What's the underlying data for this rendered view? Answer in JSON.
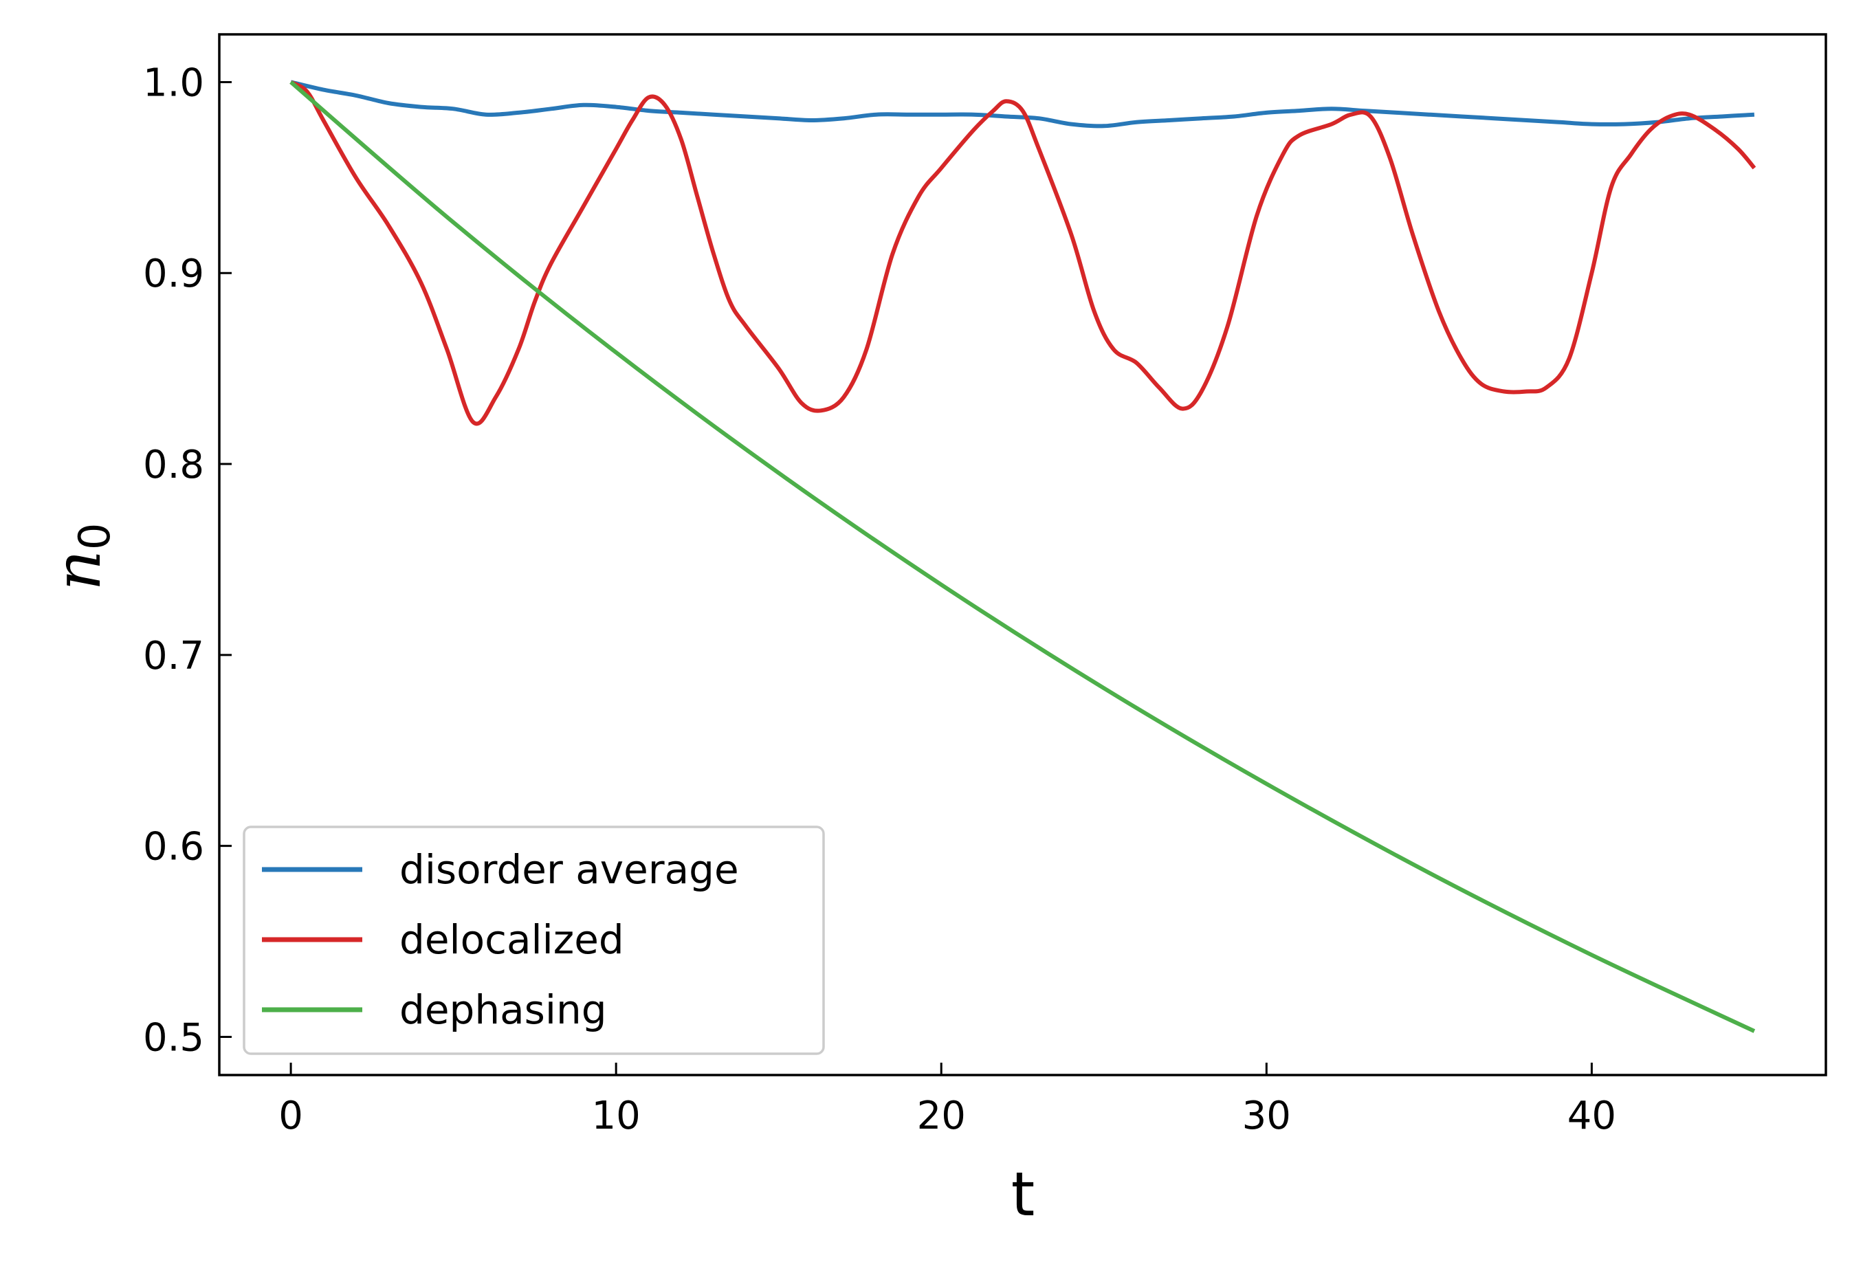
{
  "chart_data": {
    "type": "line",
    "title": "",
    "xlabel": "t",
    "ylabel_main": "n",
    "ylabel_sub": "0",
    "xlim": [
      -2.2,
      47.2
    ],
    "ylim": [
      0.48,
      1.025
    ],
    "xticks": [
      0,
      10,
      20,
      30,
      40
    ],
    "yticks": [
      0.5,
      0.6,
      0.7,
      0.8,
      0.9,
      1.0
    ],
    "xtick_labels": [
      "0",
      "10",
      "20",
      "30",
      "40"
    ],
    "ytick_labels": [
      "0.5",
      "0.6",
      "0.7",
      "0.8",
      "0.9",
      "1.0"
    ],
    "grid": false,
    "legend_position": "lower-left",
    "series": [
      {
        "name": "disorder average",
        "color": "#2878b8",
        "points": [
          [
            0,
            1.0
          ],
          [
            1,
            0.996
          ],
          [
            2,
            0.993
          ],
          [
            3,
            0.989
          ],
          [
            4,
            0.987
          ],
          [
            5,
            0.986
          ],
          [
            6,
            0.983
          ],
          [
            7,
            0.984
          ],
          [
            8,
            0.986
          ],
          [
            9,
            0.988
          ],
          [
            10,
            0.987
          ],
          [
            11,
            0.985
          ],
          [
            12,
            0.984
          ],
          [
            13,
            0.983
          ],
          [
            14,
            0.982
          ],
          [
            15,
            0.981
          ],
          [
            16,
            0.98
          ],
          [
            17,
            0.981
          ],
          [
            18,
            0.983
          ],
          [
            19,
            0.983
          ],
          [
            20,
            0.983
          ],
          [
            21,
            0.983
          ],
          [
            22,
            0.982
          ],
          [
            23,
            0.981
          ],
          [
            24,
            0.978
          ],
          [
            25,
            0.977
          ],
          [
            26,
            0.979
          ],
          [
            27,
            0.98
          ],
          [
            28,
            0.981
          ],
          [
            29,
            0.982
          ],
          [
            30,
            0.984
          ],
          [
            31,
            0.985
          ],
          [
            32,
            0.986
          ],
          [
            33,
            0.985
          ],
          [
            34,
            0.984
          ],
          [
            35,
            0.983
          ],
          [
            36,
            0.982
          ],
          [
            37,
            0.981
          ],
          [
            38,
            0.98
          ],
          [
            39,
            0.979
          ],
          [
            40,
            0.978
          ],
          [
            41,
            0.978
          ],
          [
            42,
            0.979
          ],
          [
            43,
            0.981
          ],
          [
            44,
            0.982
          ],
          [
            45,
            0.983
          ]
        ]
      },
      {
        "name": "delocalized",
        "color": "#d62728",
        "points": [
          [
            0,
            1.0
          ],
          [
            0.5,
            0.995
          ],
          [
            1,
            0.98
          ],
          [
            2,
            0.95
          ],
          [
            3,
            0.925
          ],
          [
            4,
            0.895
          ],
          [
            4.8,
            0.86
          ],
          [
            5.6,
            0.822
          ],
          [
            6.3,
            0.835
          ],
          [
            7,
            0.86
          ],
          [
            7.5,
            0.885
          ],
          [
            8,
            0.905
          ],
          [
            9,
            0.935
          ],
          [
            10,
            0.965
          ],
          [
            10.5,
            0.98
          ],
          [
            11,
            0.992
          ],
          [
            11.5,
            0.988
          ],
          [
            12,
            0.97
          ],
          [
            12.5,
            0.94
          ],
          [
            13,
            0.91
          ],
          [
            13.5,
            0.885
          ],
          [
            14,
            0.872
          ],
          [
            15,
            0.85
          ],
          [
            15.7,
            0.832
          ],
          [
            16.3,
            0.828
          ],
          [
            17,
            0.835
          ],
          [
            17.7,
            0.86
          ],
          [
            18.5,
            0.91
          ],
          [
            19.3,
            0.94
          ],
          [
            20,
            0.955
          ],
          [
            21,
            0.975
          ],
          [
            21.6,
            0.985
          ],
          [
            22,
            0.99
          ],
          [
            22.5,
            0.985
          ],
          [
            23,
            0.965
          ],
          [
            24,
            0.92
          ],
          [
            24.7,
            0.88
          ],
          [
            25.3,
            0.86
          ],
          [
            26,
            0.853
          ],
          [
            26.7,
            0.84
          ],
          [
            27.4,
            0.829
          ],
          [
            28,
            0.838
          ],
          [
            28.8,
            0.872
          ],
          [
            29.7,
            0.93
          ],
          [
            30.5,
            0.962
          ],
          [
            31,
            0.972
          ],
          [
            32,
            0.978
          ],
          [
            32.6,
            0.983
          ],
          [
            33.2,
            0.982
          ],
          [
            33.8,
            0.96
          ],
          [
            34.5,
            0.92
          ],
          [
            35.3,
            0.88
          ],
          [
            36,
            0.855
          ],
          [
            36.6,
            0.842
          ],
          [
            37.3,
            0.838
          ],
          [
            38,
            0.838
          ],
          [
            38.6,
            0.84
          ],
          [
            39.3,
            0.855
          ],
          [
            40,
            0.9
          ],
          [
            40.6,
            0.945
          ],
          [
            41.2,
            0.962
          ],
          [
            41.8,
            0.975
          ],
          [
            42.4,
            0.982
          ],
          [
            43,
            0.983
          ],
          [
            43.8,
            0.975
          ],
          [
            44.5,
            0.965
          ],
          [
            45,
            0.955
          ]
        ]
      },
      {
        "name": "dephasing",
        "color": "#4daf4a",
        "points": [
          [
            0,
            1.0
          ],
          [
            5,
            0.9265
          ],
          [
            10,
            0.8584
          ],
          [
            15,
            0.7953
          ],
          [
            20,
            0.7368
          ],
          [
            25,
            0.6826
          ],
          [
            30,
            0.6325
          ],
          [
            35,
            0.5859
          ],
          [
            40,
            0.5429
          ],
          [
            45,
            0.503
          ]
        ]
      }
    ]
  }
}
